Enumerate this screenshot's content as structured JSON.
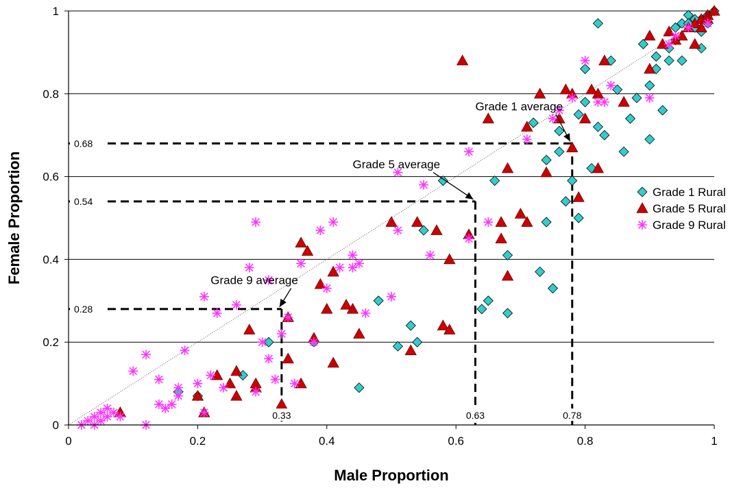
{
  "chart_data": {
    "type": "scatter",
    "xlabel": "Male Proportion",
    "ylabel": "Female Proportion",
    "xlim": [
      0,
      1
    ],
    "ylim": [
      0,
      1
    ],
    "x_ticks": [
      "0",
      "0.2",
      "0.4",
      "0.6",
      "0.8",
      "1"
    ],
    "y_ticks": [
      "0",
      "0.2",
      "0.4",
      "0.6",
      "0.8",
      "1"
    ],
    "grid": "horizontal",
    "legend_position": "right",
    "colors": {
      "grade1": "#33cccc",
      "grade5": "#cc0000",
      "grade9": "#ff33ff",
      "axis": "#000000",
      "grid": "#000000",
      "diagonal": "#555555"
    },
    "series": [
      {
        "name": "Grade 1 Rural",
        "marker": "diamond",
        "points": [
          [
            0.17,
            0.08
          ],
          [
            0.2,
            0.07
          ],
          [
            0.27,
            0.12
          ],
          [
            0.31,
            0.2
          ],
          [
            0.38,
            0.2
          ],
          [
            0.45,
            0.09
          ],
          [
            0.48,
            0.3
          ],
          [
            0.51,
            0.19
          ],
          [
            0.53,
            0.24
          ],
          [
            0.54,
            0.2
          ],
          [
            0.55,
            0.47
          ],
          [
            0.58,
            0.59
          ],
          [
            0.64,
            0.28
          ],
          [
            0.65,
            0.3
          ],
          [
            0.66,
            0.59
          ],
          [
            0.68,
            0.27
          ],
          [
            0.68,
            0.41
          ],
          [
            0.72,
            0.73
          ],
          [
            0.73,
            0.37
          ],
          [
            0.74,
            0.49
          ],
          [
            0.74,
            0.64
          ],
          [
            0.75,
            0.33
          ],
          [
            0.76,
            0.66
          ],
          [
            0.76,
            0.71
          ],
          [
            0.77,
            0.54
          ],
          [
            0.78,
            0.59
          ],
          [
            0.79,
            0.75
          ],
          [
            0.79,
            0.5
          ],
          [
            0.8,
            0.78
          ],
          [
            0.8,
            0.86
          ],
          [
            0.81,
            0.62
          ],
          [
            0.82,
            0.72
          ],
          [
            0.82,
            0.97
          ],
          [
            0.83,
            0.7
          ],
          [
            0.84,
            0.88
          ],
          [
            0.85,
            0.81
          ],
          [
            0.86,
            0.66
          ],
          [
            0.87,
            0.74
          ],
          [
            0.88,
            0.79
          ],
          [
            0.89,
            0.92
          ],
          [
            0.9,
            0.69
          ],
          [
            0.9,
            0.82
          ],
          [
            0.91,
            0.86
          ],
          [
            0.91,
            0.89
          ],
          [
            0.92,
            0.76
          ],
          [
            0.93,
            0.88
          ],
          [
            0.94,
            0.93
          ],
          [
            0.95,
            0.88
          ],
          [
            0.95,
            0.97
          ],
          [
            0.96,
            0.99
          ],
          [
            0.97,
            0.96
          ],
          [
            0.98,
            0.91
          ],
          [
            0.98,
            0.95
          ],
          [
            0.98,
            0.98
          ],
          [
            0.99,
            0.99
          ],
          [
            1.0,
            1.0
          ],
          [
            0.97,
            0.98
          ],
          [
            0.93,
            0.91
          ],
          [
            0.94,
            0.96
          ],
          [
            0.96,
            0.97
          ],
          [
            0.99,
            0.97
          ]
        ]
      },
      {
        "name": "Grade 5 Rural",
        "marker": "triangle",
        "points": [
          [
            0.08,
            0.03
          ],
          [
            0.2,
            0.07
          ],
          [
            0.21,
            0.03
          ],
          [
            0.23,
            0.12
          ],
          [
            0.25,
            0.1
          ],
          [
            0.26,
            0.07
          ],
          [
            0.26,
            0.13
          ],
          [
            0.29,
            0.09
          ],
          [
            0.29,
            0.1
          ],
          [
            0.28,
            0.23
          ],
          [
            0.33,
            0.05
          ],
          [
            0.34,
            0.16
          ],
          [
            0.34,
            0.26
          ],
          [
            0.36,
            0.1
          ],
          [
            0.36,
            0.44
          ],
          [
            0.37,
            0.42
          ],
          [
            0.38,
            0.21
          ],
          [
            0.39,
            0.34
          ],
          [
            0.4,
            0.28
          ],
          [
            0.41,
            0.15
          ],
          [
            0.41,
            0.37
          ],
          [
            0.43,
            0.29
          ],
          [
            0.44,
            0.28
          ],
          [
            0.45,
            0.22
          ],
          [
            0.5,
            0.49
          ],
          [
            0.53,
            0.18
          ],
          [
            0.54,
            0.49
          ],
          [
            0.57,
            0.47
          ],
          [
            0.58,
            0.24
          ],
          [
            0.59,
            0.23
          ],
          [
            0.59,
            0.4
          ],
          [
            0.61,
            0.88
          ],
          [
            0.62,
            0.46
          ],
          [
            0.65,
            0.74
          ],
          [
            0.67,
            0.49
          ],
          [
            0.67,
            0.45
          ],
          [
            0.68,
            0.36
          ],
          [
            0.68,
            0.62
          ],
          [
            0.7,
            0.51
          ],
          [
            0.71,
            0.72
          ],
          [
            0.71,
            0.49
          ],
          [
            0.73,
            0.8
          ],
          [
            0.74,
            0.61
          ],
          [
            0.76,
            0.74
          ],
          [
            0.77,
            0.81
          ],
          [
            0.78,
            0.8
          ],
          [
            0.78,
            0.67
          ],
          [
            0.79,
            0.55
          ],
          [
            0.8,
            0.74
          ],
          [
            0.81,
            0.81
          ],
          [
            0.82,
            0.62
          ],
          [
            0.82,
            0.8
          ],
          [
            0.83,
            0.88
          ],
          [
            0.86,
            0.78
          ],
          [
            0.9,
            0.94
          ],
          [
            0.9,
            0.86
          ],
          [
            0.92,
            0.92
          ],
          [
            0.93,
            0.95
          ],
          [
            0.94,
            0.93
          ],
          [
            0.96,
            0.96
          ],
          [
            0.97,
            0.92
          ],
          [
            0.98,
            0.98
          ],
          [
            0.98,
            0.96
          ],
          [
            0.99,
            0.99
          ],
          [
            0.99,
            0.98
          ],
          [
            1.0,
            1.0
          ],
          [
            0.95,
            0.94
          ],
          [
            0.97,
            0.97
          ]
        ]
      },
      {
        "name": "Grade 9 Rural",
        "marker": "asterisk",
        "points": [
          [
            0.02,
            0.0
          ],
          [
            0.03,
            0.01
          ],
          [
            0.04,
            0.0
          ],
          [
            0.04,
            0.02
          ],
          [
            0.05,
            0.01
          ],
          [
            0.05,
            0.03
          ],
          [
            0.06,
            0.02
          ],
          [
            0.06,
            0.04
          ],
          [
            0.07,
            0.03
          ],
          [
            0.08,
            0.02
          ],
          [
            0.1,
            0.13
          ],
          [
            0.12,
            0.0
          ],
          [
            0.12,
            0.17
          ],
          [
            0.14,
            0.05
          ],
          [
            0.14,
            0.11
          ],
          [
            0.15,
            0.04
          ],
          [
            0.16,
            0.05
          ],
          [
            0.17,
            0.07
          ],
          [
            0.17,
            0.09
          ],
          [
            0.18,
            0.18
          ],
          [
            0.2,
            0.1
          ],
          [
            0.21,
            0.03
          ],
          [
            0.21,
            0.31
          ],
          [
            0.22,
            0.12
          ],
          [
            0.23,
            0.27
          ],
          [
            0.24,
            0.09
          ],
          [
            0.26,
            0.29
          ],
          [
            0.28,
            0.38
          ],
          [
            0.29,
            0.08
          ],
          [
            0.29,
            0.49
          ],
          [
            0.3,
            0.2
          ],
          [
            0.31,
            0.16
          ],
          [
            0.31,
            0.35
          ],
          [
            0.32,
            0.11
          ],
          [
            0.33,
            0.22
          ],
          [
            0.34,
            0.26
          ],
          [
            0.35,
            0.1
          ],
          [
            0.36,
            0.39
          ],
          [
            0.38,
            0.2
          ],
          [
            0.39,
            0.47
          ],
          [
            0.4,
            0.33
          ],
          [
            0.41,
            0.49
          ],
          [
            0.42,
            0.38
          ],
          [
            0.44,
            0.38
          ],
          [
            0.44,
            0.41
          ],
          [
            0.45,
            0.39
          ],
          [
            0.46,
            0.27
          ],
          [
            0.5,
            0.31
          ],
          [
            0.51,
            0.61
          ],
          [
            0.51,
            0.47
          ],
          [
            0.55,
            0.58
          ],
          [
            0.56,
            0.41
          ],
          [
            0.62,
            0.45
          ],
          [
            0.62,
            0.66
          ],
          [
            0.65,
            0.49
          ],
          [
            0.71,
            0.69
          ],
          [
            0.75,
            0.74
          ],
          [
            0.76,
            0.76
          ],
          [
            0.78,
            0.79
          ],
          [
            0.8,
            0.88
          ],
          [
            0.82,
            0.78
          ],
          [
            0.83,
            0.78
          ],
          [
            0.84,
            0.82
          ],
          [
            0.9,
            0.79
          ],
          [
            0.93,
            0.92
          ],
          [
            0.94,
            0.94
          ],
          [
            0.96,
            0.96
          ],
          [
            0.99,
            0.97
          ]
        ]
      }
    ],
    "annotations": [
      {
        "name": "grade-1-average",
        "label": "Grade 1 average",
        "point": [
          0.78,
          0.68
        ],
        "label_at": [
          0.63,
          0.76
        ],
        "x_value_label": "0.78",
        "y_value_label": "0.68"
      },
      {
        "name": "grade-5-average",
        "label": "Grade 5 average",
        "point": [
          0.63,
          0.54
        ],
        "label_at": [
          0.44,
          0.62
        ],
        "x_value_label": "0.63",
        "y_value_label": "0.54"
      },
      {
        "name": "grade-9-average",
        "label": "Grade 9 average",
        "point": [
          0.33,
          0.28
        ],
        "label_at": [
          0.22,
          0.34
        ],
        "x_value_label": "0.33",
        "y_value_label": "0.28"
      }
    ]
  }
}
